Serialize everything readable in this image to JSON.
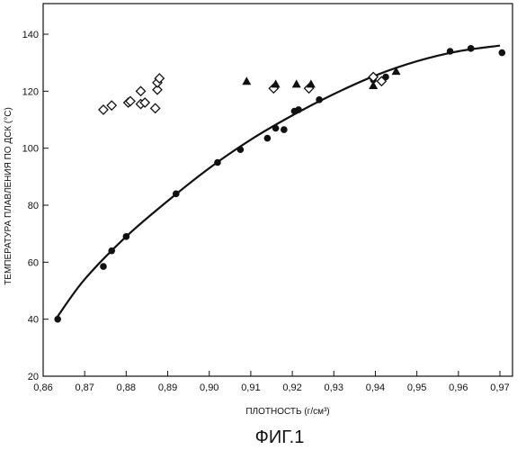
{
  "chart_data": {
    "type": "scatter",
    "xlabel": "ПЛОТНОСТЬ (г/см³)",
    "ylabel": "ТЕМПЕРАТУРА ПЛАВЛЕНИЯ ПО ДСК (°C)",
    "figure_label": "ФИГ.1",
    "xlim": [
      0.86,
      0.97
    ],
    "ylim": [
      20,
      145
    ],
    "x_ticks": [
      "0,86",
      "0,87",
      "0,88",
      "0,89",
      "0,90",
      "0,91",
      "0,92",
      "0,93",
      "0,94",
      "0,95",
      "0,96",
      "0,97"
    ],
    "x_tick_values": [
      0.86,
      0.87,
      0.88,
      0.89,
      0.9,
      0.91,
      0.92,
      0.93,
      0.94,
      0.95,
      0.96,
      0.97
    ],
    "y_ticks": [
      "20",
      "40",
      "60",
      "80",
      "100",
      "120",
      "140"
    ],
    "y_tick_values": [
      20,
      40,
      60,
      80,
      100,
      120,
      140
    ],
    "grid": false,
    "legend": "none",
    "series": [
      {
        "marker": "filled-circle",
        "x": [
          0.8635,
          0.8745,
          0.8765,
          0.88,
          0.892,
          0.902,
          0.9075,
          0.914,
          0.916,
          0.918,
          0.9205,
          0.9215,
          0.9265,
          0.9395,
          0.9425,
          0.958,
          0.963,
          0.9705
        ],
        "y": [
          40,
          58.5,
          64,
          69,
          84,
          95,
          99.5,
          103.5,
          107,
          106.5,
          113,
          113.5,
          117,
          124,
          125,
          134,
          135,
          133.5
        ]
      },
      {
        "marker": "open-diamond",
        "x": [
          0.8745,
          0.8765,
          0.8805,
          0.881,
          0.8835,
          0.8835,
          0.8845,
          0.887,
          0.8875,
          0.8875,
          0.888,
          0.9155,
          0.924,
          0.9395,
          0.9415
        ],
        "y": [
          113.5,
          115,
          116,
          116.5,
          115.5,
          120,
          116,
          114,
          120.5,
          123,
          124.5,
          121,
          121,
          125,
          123.5
        ]
      },
      {
        "marker": "filled-triangle",
        "x": [
          0.909,
          0.916,
          0.921,
          0.9245,
          0.9395,
          0.945
        ],
        "y": [
          123.5,
          122.5,
          122.5,
          122.5,
          122,
          127
        ]
      }
    ],
    "trend_curve": {
      "x": [
        0.8635,
        0.87,
        0.88,
        0.89,
        0.9,
        0.91,
        0.92,
        0.93,
        0.94,
        0.95,
        0.96,
        0.97
      ],
      "y": [
        41,
        54,
        69,
        81.5,
        93,
        103,
        111.5,
        119,
        125.5,
        130.5,
        134,
        136
      ]
    }
  },
  "colors": {
    "ink": "#111111",
    "background": "#ffffff"
  }
}
